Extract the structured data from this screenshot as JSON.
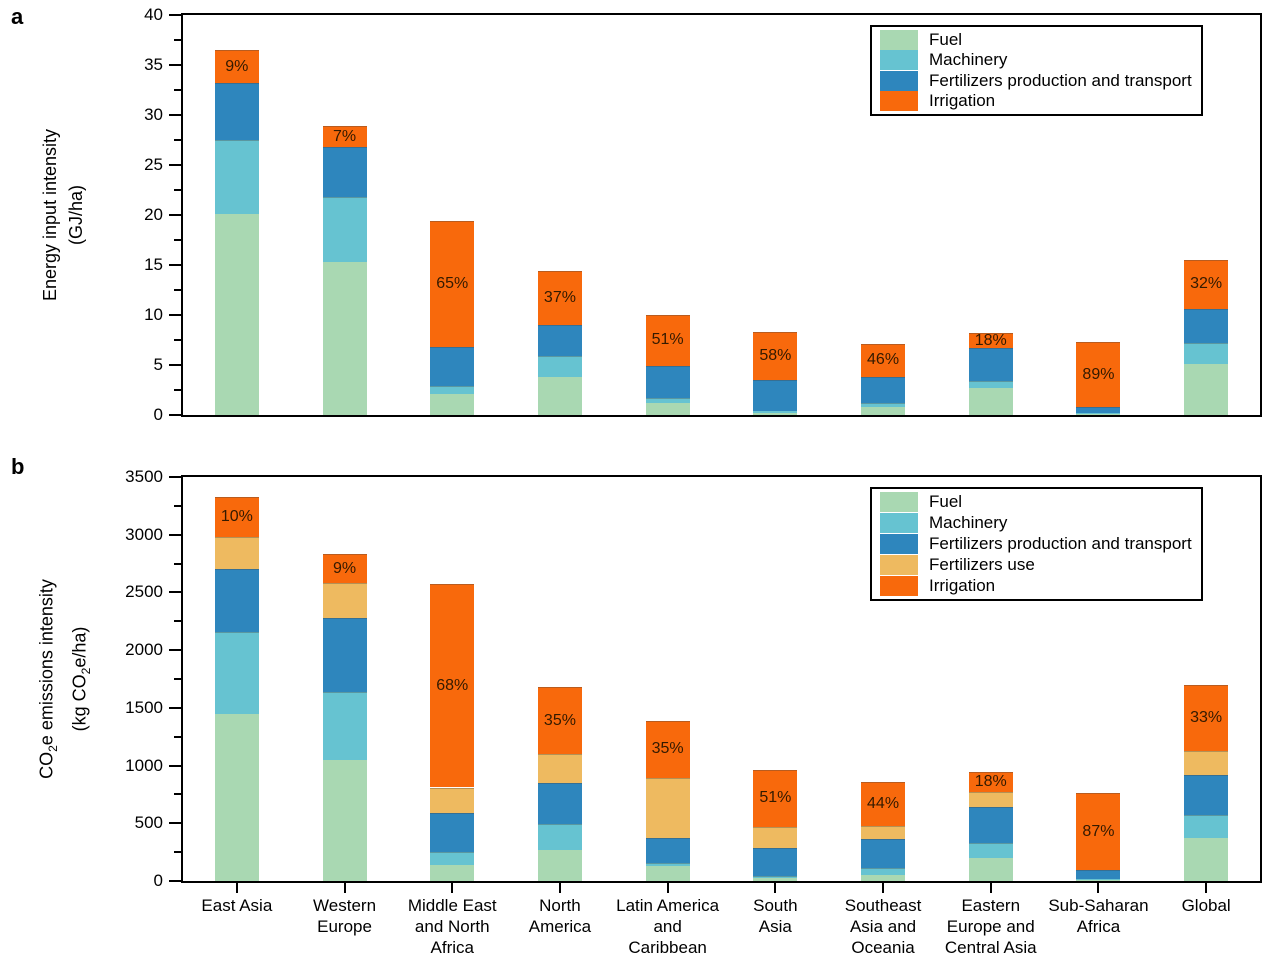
{
  "figure": {
    "background": "#ffffff",
    "text_color": "#000000",
    "axis_color": "#000000"
  },
  "panel_a": {
    "letter": "a",
    "y_axis_title_line1": "Energy input intensity",
    "y_axis_title_line2": "(GJ/ha)"
  },
  "panel_b": {
    "letter": "b",
    "y_title_co": "CO",
    "y_title_sub": "2",
    "y_title_rest": "e emissions intensity",
    "y_unit_pre": "(kg CO",
    "y_unit_sub": "2",
    "y_unit_post": "e/ha)"
  },
  "percent_label_color": "#331a00",
  "chart_data": [
    {
      "type": "bar",
      "stacked": true,
      "panel": "a",
      "title": "",
      "xlabel": "",
      "ylabel": "Energy input intensity (GJ/ha)",
      "ylim": [
        0,
        40
      ],
      "y_ticks": [
        0,
        5,
        10,
        15,
        20,
        25,
        30,
        35,
        40
      ],
      "y_minor_step": 2.5,
      "grid": false,
      "legend_position": "top-right",
      "categories": [
        "East Asia",
        "Western Europe",
        "Middle East and North Africa",
        "North America",
        "Latin America and Caribbean",
        "South Asia",
        "Southeast Asia and Oceania",
        "Eastern Europe and Central Asia",
        "Sub-Saharan Africa",
        "Global"
      ],
      "series": [
        {
          "name": "Fuel",
          "color": "#a9d8b2",
          "values": [
            20.1,
            15.3,
            2.1,
            3.8,
            1.2,
            0.25,
            0.8,
            2.7,
            0.2,
            5.1
          ]
        },
        {
          "name": "Machinery",
          "color": "#66c3d1",
          "values": [
            7.4,
            6.5,
            0.8,
            2.1,
            0.55,
            0.15,
            0.4,
            0.7,
            0.05,
            2.1
          ]
        },
        {
          "name": "Fertilizers production and transport",
          "color": "#2e86bd",
          "values": [
            5.7,
            5.0,
            3.9,
            3.1,
            3.15,
            3.1,
            2.65,
            3.3,
            0.55,
            3.45
          ]
        },
        {
          "name": "Irrigation",
          "color": "#f8690c",
          "values": [
            3.3,
            2.1,
            12.6,
            5.4,
            5.15,
            4.85,
            3.3,
            1.5,
            6.5,
            4.85
          ]
        }
      ],
      "irrigation_pct_labels": [
        "9%",
        "7%",
        "65%",
        "37%",
        "51%",
        "58%",
        "46%",
        "18%",
        "89%",
        "32%"
      ]
    },
    {
      "type": "bar",
      "stacked": true,
      "panel": "b",
      "title": "",
      "xlabel": "",
      "ylabel": "CO2e emissions intensity (kg CO2e/ha)",
      "ylim": [
        0,
        3500
      ],
      "y_ticks": [
        0,
        500,
        1000,
        1500,
        2000,
        2500,
        3000,
        3500
      ],
      "y_minor_step": 250,
      "grid": false,
      "legend_position": "top-right",
      "categories": [
        "East Asia",
        "Western Europe",
        "Middle East and North Africa",
        "North America",
        "Latin America and Caribbean",
        "South Asia",
        "Southeast Asia and Oceania",
        "Eastern Europe and Central Asia",
        "Sub-Saharan Africa",
        "Global"
      ],
      "category_label_lines": [
        [
          "East Asia"
        ],
        [
          "Western",
          "Europe"
        ],
        [
          "Middle East",
          "and North",
          "Africa"
        ],
        [
          "North",
          "America"
        ],
        [
          "Latin America",
          "and",
          "Caribbean"
        ],
        [
          "South",
          "Asia"
        ],
        [
          "Southeast",
          "Asia and",
          "Oceania"
        ],
        [
          "Eastern",
          "Europe and",
          "Central Asia"
        ],
        [
          "Sub-Saharan",
          "Africa"
        ],
        [
          "Global"
        ]
      ],
      "series": [
        {
          "name": "Fuel",
          "color": "#a9d8b2",
          "values": [
            1450,
            1050,
            140,
            270,
            130,
            25,
            55,
            200,
            15,
            370
          ]
        },
        {
          "name": "Machinery",
          "color": "#66c3d1",
          "values": [
            710,
            590,
            110,
            220,
            30,
            20,
            55,
            130,
            5,
            200
          ]
        },
        {
          "name": "Fertilizers production and transport",
          "color": "#2e86bd",
          "values": [
            540,
            640,
            340,
            355,
            210,
            245,
            250,
            310,
            75,
            350
          ]
        },
        {
          "name": "Fertilizers use",
          "color": "#eeba60",
          "values": [
            280,
            300,
            220,
            255,
            520,
            180,
            120,
            130,
            0,
            210
          ]
        },
        {
          "name": "Irrigation",
          "color": "#f8690c",
          "values": [
            350,
            250,
            1760,
            580,
            500,
            490,
            380,
            170,
            665,
            570
          ]
        }
      ],
      "irrigation_pct_labels": [
        "10%",
        "9%",
        "68%",
        "35%",
        "35%",
        "51%",
        "44%",
        "18%",
        "87%",
        "33%"
      ]
    }
  ]
}
